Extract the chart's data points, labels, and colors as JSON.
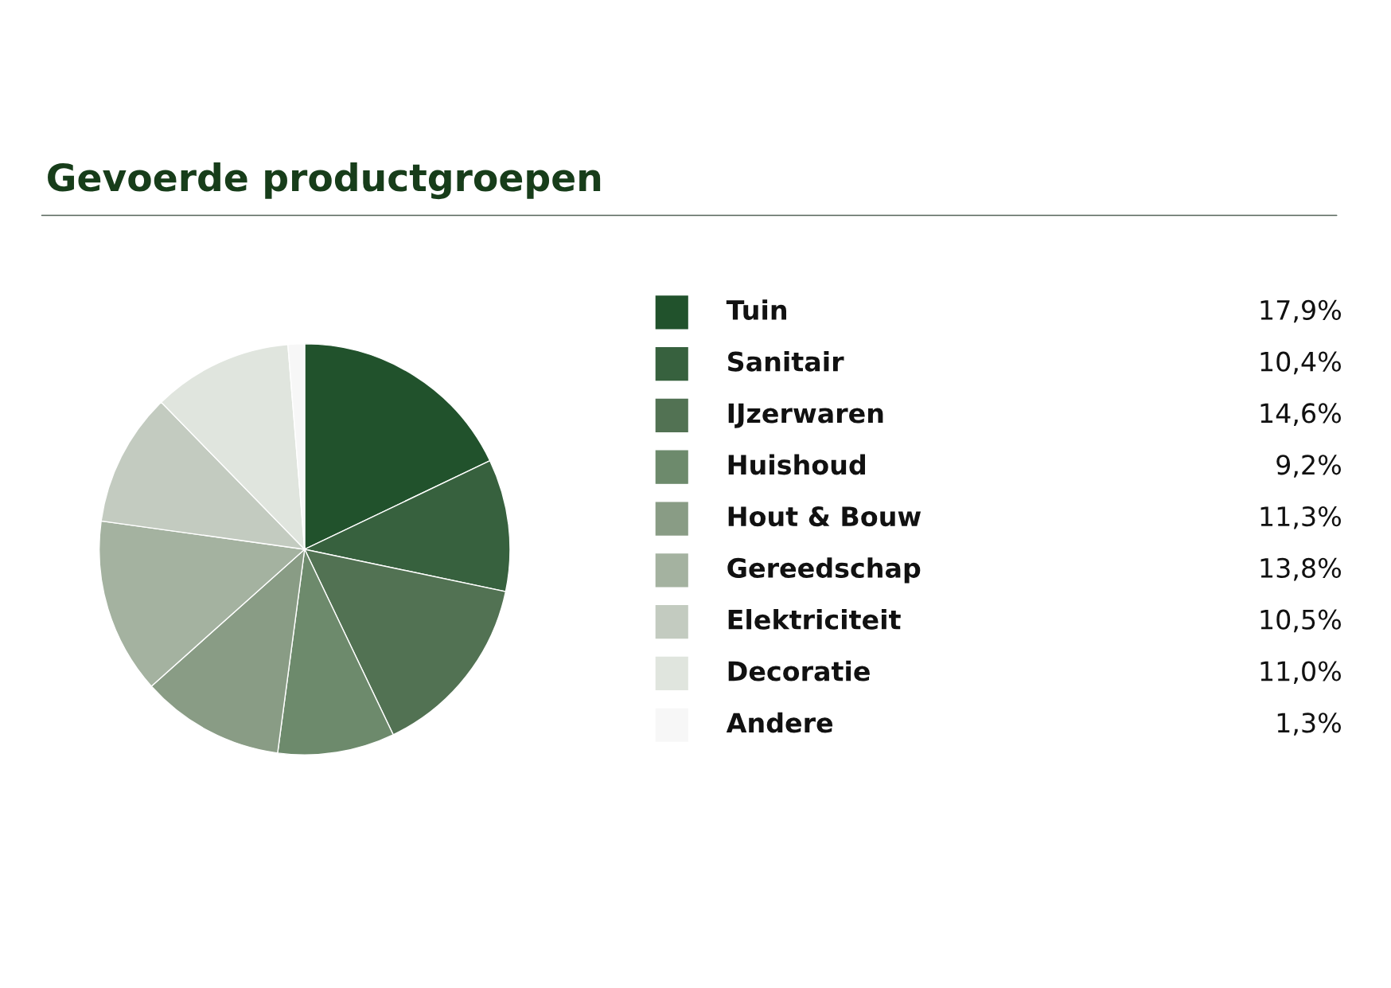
{
  "chart_data": {
    "type": "pie",
    "title": "Gevoerde productgroepen",
    "categories": [
      "Tuin",
      "Sanitair",
      "IJzerwaren",
      "Huishoud",
      "Hout & Bouw",
      "Gereedschap",
      "Elektriciteit",
      "Decoratie",
      "Andere"
    ],
    "values": [
      17.9,
      10.4,
      14.6,
      9.2,
      11.3,
      13.8,
      10.5,
      11.0,
      1.3
    ],
    "value_labels": [
      "17,9%",
      "10,4%",
      "14,6%",
      "9,2%",
      "11,3%",
      "13,8%",
      "10,5%",
      "11,0%",
      "1,3%"
    ],
    "colors": [
      "#21522c",
      "#37613e",
      "#527253",
      "#6d8a6c",
      "#899c85",
      "#a4b2a0",
      "#c3cbc0",
      "#e0e5de",
      "#f7f7f7"
    ],
    "legend": "right"
  }
}
